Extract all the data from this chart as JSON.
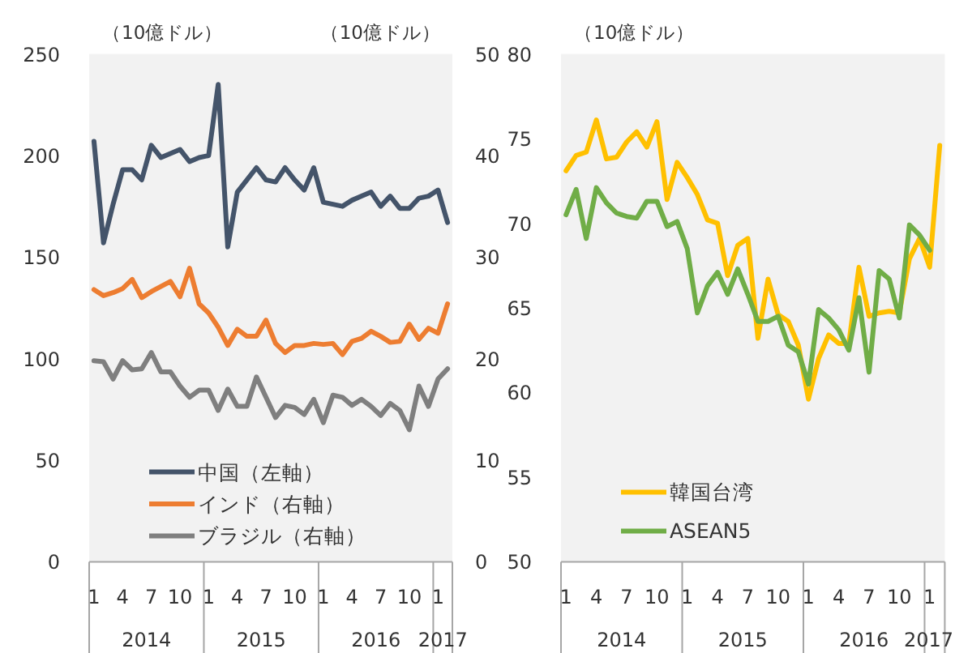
{
  "chart_data": [
    {
      "type": "line",
      "ylabel": "（10億ドル）",
      "y2label": "（10億ドル）",
      "categories": [
        "1",
        null,
        null,
        "4",
        null,
        null,
        "7",
        null,
        null,
        "10",
        null,
        null,
        "1",
        null,
        null,
        "4",
        null,
        null,
        "7",
        null,
        null,
        "10",
        null,
        null,
        "1",
        null,
        null,
        "4",
        null,
        null,
        "7",
        null,
        null,
        "10",
        null,
        null,
        "1",
        null
      ],
      "series": [
        {
          "name": "中国（左軸）",
          "color": "#44546a",
          "values": [
            207,
            157,
            176,
            193,
            193,
            188,
            205,
            199,
            201,
            203,
            197,
            199,
            200,
            235,
            155,
            182,
            188,
            194,
            188,
            187,
            194,
            188,
            183,
            194,
            177,
            176,
            175,
            178,
            180,
            182,
            175,
            180,
            174,
            174,
            179,
            180,
            183,
            167
          ]
        },
        {
          "name": "インド（右軸）",
          "color": "#ed7d31",
          "axis": "y2",
          "values": [
            26.8,
            26.2,
            26.5,
            26.9,
            27.8,
            26.0,
            26.6,
            27.1,
            27.6,
            26.1,
            28.9,
            25.4,
            24.5,
            23.1,
            21.3,
            22.9,
            22.2,
            22.2,
            23.8,
            21.5,
            20.6,
            21.3,
            21.3,
            21.5,
            21.4,
            21.5,
            20.4,
            21.7,
            22.0,
            22.7,
            22.2,
            21.6,
            21.7,
            23.4,
            21.9,
            23.0,
            22.5,
            25.4
          ]
        },
        {
          "name": "ブラジル（右軸）",
          "color": "#7f7f7f",
          "axis": "y2",
          "values": [
            19.8,
            19.7,
            18.0,
            19.8,
            18.9,
            19.0,
            20.6,
            18.7,
            18.7,
            17.3,
            16.2,
            16.9,
            16.9,
            14.9,
            17.0,
            15.3,
            15.3,
            18.2,
            16.2,
            14.2,
            15.4,
            15.2,
            14.5,
            16.0,
            13.7,
            16.4,
            16.2,
            15.4,
            16.0,
            15.3,
            14.4,
            15.6,
            14.9,
            13.0,
            17.3,
            15.3,
            18.0,
            19.0
          ]
        }
      ],
      "ylim": [
        0,
        250
      ],
      "yticks": [
        0,
        50,
        100,
        150,
        200,
        250
      ],
      "y2lim": [
        0,
        50
      ],
      "y2ticks": [
        0,
        10,
        20,
        30,
        40,
        50
      ],
      "legend": "bottom left",
      "annotations": [
        "2014",
        "2015",
        "2016",
        "2017"
      ]
    },
    {
      "type": "line",
      "ylabel": "（10億ドル）",
      "categories": [
        "1",
        null,
        null,
        "4",
        null,
        null,
        "7",
        null,
        null,
        "10",
        null,
        null,
        "1",
        null,
        null,
        "4",
        null,
        null,
        "7",
        null,
        null,
        "10",
        null,
        null,
        "1",
        null,
        null,
        "4",
        null,
        null,
        "7",
        null,
        null,
        "10",
        null,
        null,
        "1",
        null
      ],
      "series": [
        {
          "name": "韓国台湾",
          "color": "#ffc000",
          "values": [
            73.1,
            74.0,
            74.2,
            76.1,
            73.8,
            73.9,
            74.8,
            75.4,
            74.5,
            76.0,
            71.4,
            73.6,
            72.7,
            71.7,
            70.2,
            70.0,
            66.9,
            68.7,
            69.1,
            63.2,
            66.7,
            64.6,
            64.2,
            62.8,
            59.6,
            62.0,
            63.4,
            62.9,
            62.9,
            67.4,
            64.5,
            64.7,
            64.8,
            64.7,
            67.9,
            69.1,
            67.4,
            74.6
          ]
        },
        {
          "name": "ASEAN5",
          "color": "#70ad47",
          "values": [
            70.5,
            72.0,
            69.1,
            72.1,
            71.2,
            70.6,
            70.4,
            70.3,
            71.3,
            71.3,
            69.8,
            70.1,
            68.5,
            64.7,
            66.3,
            67.1,
            65.8,
            67.3,
            65.8,
            64.2,
            64.2,
            64.5,
            62.8,
            62.4,
            60.5,
            64.9,
            64.4,
            63.7,
            62.5,
            65.6,
            61.2,
            67.2,
            66.7,
            64.4,
            69.9,
            69.3,
            68.4,
            null
          ]
        }
      ],
      "ylim": [
        50,
        80
      ],
      "yticks": [
        50,
        55,
        60,
        65,
        70,
        75,
        80
      ],
      "legend": "bottom left",
      "annotations": [
        "2014",
        "2015",
        "2016",
        "2017"
      ]
    }
  ]
}
